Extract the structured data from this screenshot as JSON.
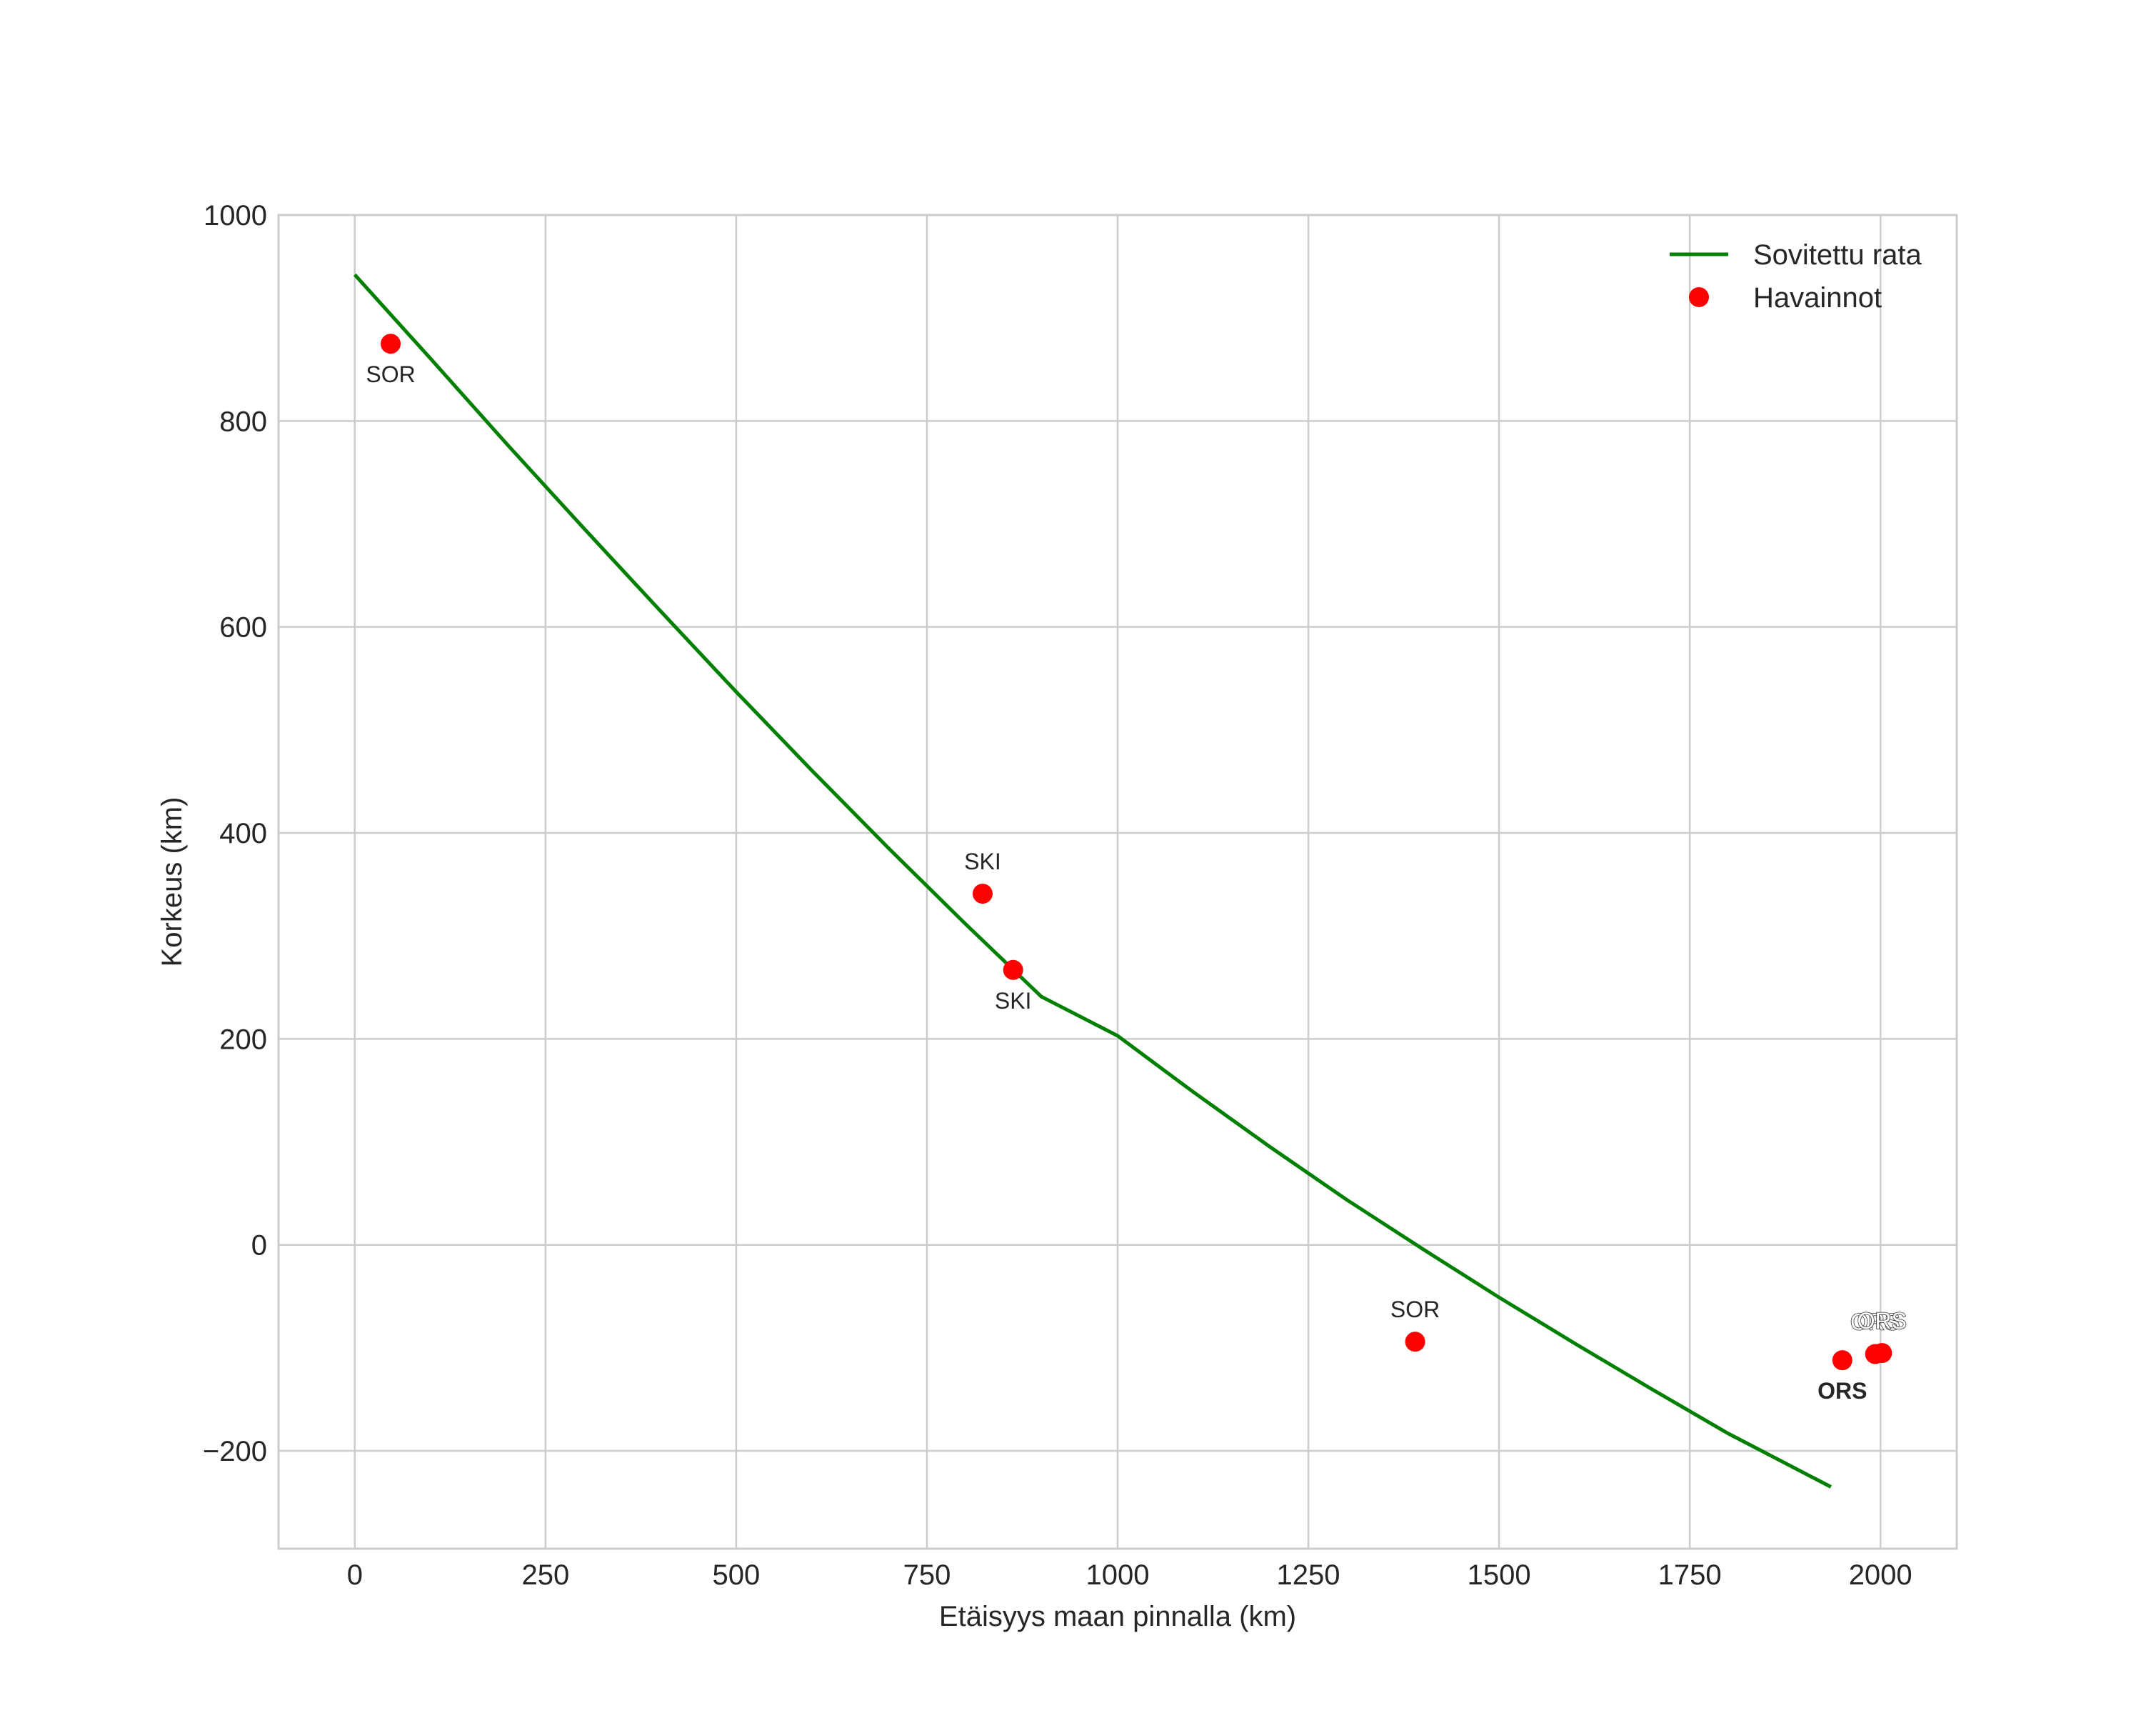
{
  "chart_data": {
    "type": "line",
    "title": "",
    "xlabel": "Etäisyys maan pinnalla (km)",
    "ylabel": "Korkeus (km)",
    "xlim": [
      -100,
      2100
    ],
    "ylim": [
      -295,
      1000
    ],
    "xticks": [
      0,
      250,
      500,
      750,
      1000,
      1250,
      1500,
      1750,
      2000
    ],
    "xtick_labels": [
      "0",
      "250",
      "500",
      "750",
      "1000",
      "1250",
      "1500",
      "1750",
      "2000"
    ],
    "yticks": [
      -200,
      0,
      200,
      400,
      600,
      800,
      1000
    ],
    "ytick_labels": [
      "−200",
      "0",
      "200",
      "400",
      "600",
      "800",
      "1000"
    ],
    "grid": true,
    "legend": {
      "placement": "top-right",
      "entries": [
        {
          "label": "Sovitettu rata",
          "kind": "line",
          "color": "#008000"
        },
        {
          "label": "Havainnot",
          "kind": "point",
          "color": "#ff0000"
        }
      ]
    },
    "series": [
      {
        "name": "Sovitettu rata",
        "kind": "line",
        "color": "#008000",
        "x": [
          0,
          100,
          200,
          300,
          400,
          500,
          600,
          700,
          800,
          900,
          1000,
          1100,
          1200,
          1300,
          1400,
          1500,
          1600,
          1700,
          1800,
          1935
        ],
        "y": [
          942,
          860,
          777,
          696,
          616,
          537,
          460,
          385,
          312,
          241,
          203,
          148,
          95,
          44,
          -4,
          -51,
          -96,
          -140,
          -183,
          -235
        ]
      },
      {
        "name": "Havainnot",
        "kind": "scatter",
        "color": "#ff0000",
        "points": [
          {
            "x": 47,
            "y": 875,
            "label": "SOR",
            "label_pos": "below",
            "style": "normal"
          },
          {
            "x": 823,
            "y": 341,
            "label": "SKI",
            "label_pos": "above",
            "style": "normal"
          },
          {
            "x": 863,
            "y": 267,
            "label": "SKI",
            "label_pos": "below",
            "style": "normal"
          },
          {
            "x": 1390,
            "y": -94,
            "label": "SOR",
            "label_pos": "above",
            "style": "normal"
          },
          {
            "x": 1950,
            "y": -112,
            "label": "ORS",
            "label_pos": "below",
            "style": "bold"
          },
          {
            "x": 1993,
            "y": -106,
            "label": "ORS",
            "label_pos": "above",
            "style": "outlined"
          },
          {
            "x": 2002,
            "y": -105,
            "label": "ORS",
            "label_pos": "above",
            "style": "outlined"
          }
        ]
      }
    ]
  }
}
